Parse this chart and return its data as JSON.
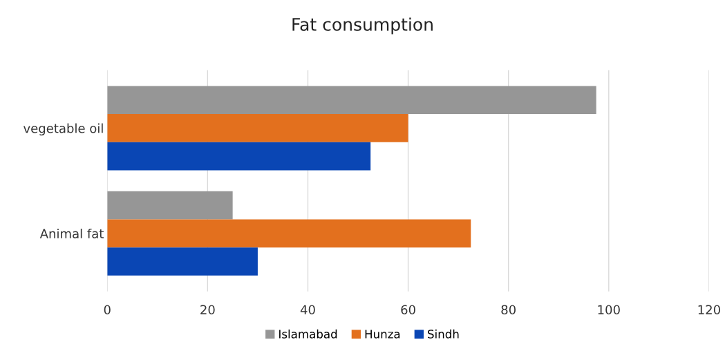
{
  "chart_data": {
    "type": "bar",
    "orientation": "horizontal",
    "title": "Fat consumption",
    "categories": [
      "vegetable oil",
      "Animal fat"
    ],
    "series": [
      {
        "name": "Islamabad",
        "color": "#969696",
        "values": [
          97.5,
          25
        ]
      },
      {
        "name": "Hunza",
        "color": "#e3701e",
        "values": [
          60,
          72.5
        ]
      },
      {
        "name": "Sindh",
        "color": "#0a46b4",
        "values": [
          52.5,
          30
        ]
      }
    ],
    "xlim": [
      0,
      120
    ],
    "xticks": [
      0,
      20,
      40,
      60,
      80,
      100,
      120
    ],
    "grid": "x",
    "legend": "bottom"
  }
}
